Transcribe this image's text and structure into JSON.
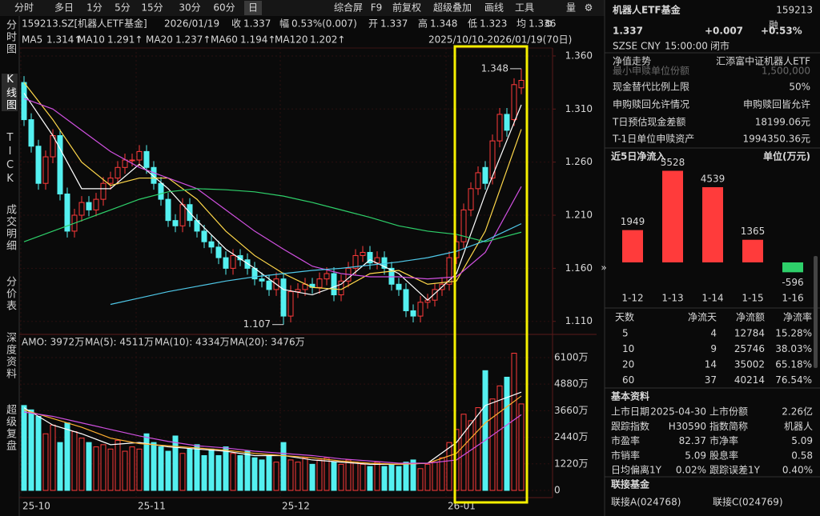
{
  "toolbar": {
    "tabs": [
      "分时",
      "多日",
      "1分",
      "5分",
      "15分",
      "30分",
      "60分",
      "日"
    ],
    "menu": [
      "综合屏",
      "F9",
      "前复权",
      "超级叠加",
      "画线",
      "工具",
      "量"
    ],
    "symbol": "159213.SZ[机器人ETF基金]",
    "date": "2026/01/19",
    "quote": [
      {
        "label": "收",
        "value": "1.337",
        "color": "#ff3b3b"
      },
      {
        "label": "幅",
        "value": "0.53%(0.007)",
        "color": "#ff3b3b"
      },
      {
        "label": "开",
        "value": "1.337",
        "color": "#ff3b3b"
      },
      {
        "label": "高",
        "value": "1.348",
        "color": "#ff3b3b"
      },
      {
        "label": "低",
        "value": "1.323",
        "color": "#2ed06a"
      },
      {
        "label": "均",
        "value": "1.336",
        "color": "#ff3b3b"
      }
    ],
    "ma_legend": [
      {
        "label": "MA5",
        "value": "1.314↑",
        "color": "#ffffff"
      },
      {
        "label": "MA10",
        "value": "1.291↑",
        "color": "#ffd84a"
      },
      {
        "label": "MA20",
        "value": "1.237↑",
        "color": "#d050e0"
      },
      {
        "label": "MA60",
        "value": "1.194↑",
        "color": "#2ed06a"
      },
      {
        "label": "MA120",
        "value": "1.202↑",
        "color": "#4fc8e8"
      }
    ],
    "range": "2025/10/10-2026/01/19(70日)"
  },
  "side_tabs": [
    "分时图",
    "K线图",
    "TICK",
    "成交明细",
    "分价表",
    "深度资料",
    "超级复盘"
  ],
  "chart_data": {
    "type": "candlestick",
    "categories": [
      "25-10",
      null,
      null,
      null,
      null,
      null,
      null,
      null,
      null,
      null,
      null,
      null,
      null,
      null,
      null,
      null,
      "25-11",
      null,
      null,
      null,
      null,
      null,
      null,
      null,
      null,
      null,
      null,
      null,
      null,
      null,
      null,
      null,
      null,
      null,
      null,
      null,
      "25-12",
      null,
      null,
      null,
      null,
      null,
      null,
      null,
      null,
      null,
      null,
      null,
      null,
      null,
      null,
      null,
      null,
      null,
      null,
      null,
      null,
      null,
      null,
      "26-01",
      null,
      null,
      null,
      null,
      null,
      null,
      null,
      null,
      null,
      null
    ],
    "open": [
      1.335,
      1.3,
      1.275,
      1.24,
      1.265,
      1.285,
      1.23,
      1.195,
      1.21,
      1.222,
      1.215,
      1.225,
      1.24,
      1.245,
      1.255,
      1.262,
      1.262,
      1.27,
      1.255,
      1.24,
      1.225,
      1.205,
      1.2,
      1.22,
      1.205,
      1.195,
      1.185,
      1.18,
      1.17,
      1.16,
      1.172,
      1.168,
      1.16,
      1.15,
      1.148,
      1.14,
      1.15,
      1.115,
      1.138,
      1.14,
      1.145,
      1.142,
      1.15,
      1.155,
      1.135,
      1.148,
      1.16,
      1.172,
      1.175,
      1.165,
      1.17,
      1.16,
      1.145,
      1.14,
      1.12,
      1.115,
      1.128,
      1.13,
      1.14,
      1.145,
      1.17,
      1.185,
      1.215,
      1.235,
      1.255,
      1.245,
      1.28,
      1.305,
      1.3,
      1.33
    ],
    "high": [
      1.341,
      1.306,
      1.281,
      1.271,
      1.291,
      1.291,
      1.236,
      1.216,
      1.228,
      1.228,
      1.231,
      1.246,
      1.251,
      1.261,
      1.268,
      1.268,
      1.276,
      1.276,
      1.261,
      1.246,
      1.231,
      1.211,
      1.226,
      1.226,
      1.211,
      1.201,
      1.191,
      1.186,
      1.176,
      1.178,
      1.178,
      1.174,
      1.166,
      1.156,
      1.154,
      1.156,
      1.156,
      1.144,
      1.146,
      1.151,
      1.151,
      1.156,
      1.161,
      1.161,
      1.154,
      1.166,
      1.178,
      1.181,
      1.181,
      1.176,
      1.176,
      1.166,
      1.151,
      1.146,
      1.126,
      1.134,
      1.136,
      1.146,
      1.151,
      1.176,
      1.191,
      1.221,
      1.241,
      1.256,
      1.261,
      1.286,
      1.311,
      1.311,
      1.339,
      1.348
    ],
    "low": [
      1.294,
      1.269,
      1.234,
      1.234,
      1.259,
      1.224,
      1.189,
      1.189,
      1.204,
      1.209,
      1.209,
      1.219,
      1.234,
      1.239,
      1.249,
      1.256,
      1.256,
      1.249,
      1.234,
      1.219,
      1.199,
      1.194,
      1.194,
      1.199,
      1.189,
      1.179,
      1.174,
      1.164,
      1.154,
      1.154,
      1.162,
      1.154,
      1.144,
      1.142,
      1.134,
      1.134,
      1.107,
      1.109,
      1.132,
      1.134,
      1.136,
      1.136,
      1.144,
      1.129,
      1.129,
      1.142,
      1.154,
      1.166,
      1.159,
      1.159,
      1.154,
      1.139,
      1.134,
      1.114,
      1.109,
      1.109,
      1.122,
      1.124,
      1.134,
      1.139,
      1.164,
      1.179,
      1.209,
      1.229,
      1.234,
      1.239,
      1.274,
      1.284,
      1.294,
      1.324
    ],
    "close": [
      1.3,
      1.275,
      1.24,
      1.265,
      1.285,
      1.23,
      1.195,
      1.21,
      1.222,
      1.215,
      1.225,
      1.24,
      1.245,
      1.255,
      1.262,
      1.262,
      1.27,
      1.255,
      1.24,
      1.225,
      1.205,
      1.2,
      1.22,
      1.205,
      1.195,
      1.185,
      1.18,
      1.17,
      1.16,
      1.172,
      1.168,
      1.16,
      1.15,
      1.148,
      1.14,
      1.15,
      1.115,
      1.138,
      1.14,
      1.145,
      1.142,
      1.15,
      1.155,
      1.135,
      1.148,
      1.16,
      1.172,
      1.175,
      1.165,
      1.17,
      1.16,
      1.145,
      1.14,
      1.12,
      1.115,
      1.128,
      1.13,
      1.14,
      1.145,
      1.17,
      1.185,
      1.215,
      1.235,
      1.25,
      1.24,
      1.28,
      1.305,
      1.29,
      1.333,
      1.337
    ],
    "up_color": "#ff3b3b",
    "down_color": "#54f0f0",
    "ylim": [
      1.1,
      1.3675
    ],
    "yticks": [
      {
        "value": 1.36,
        "label": "1.360"
      },
      {
        "value": 1.31,
        "label": "1.310"
      },
      {
        "value": 1.26,
        "label": "1.260"
      },
      {
        "value": 1.21,
        "label": "1.210"
      },
      {
        "value": 1.16,
        "label": "1.160"
      },
      {
        "value": 1.11,
        "label": "1.110"
      }
    ],
    "max_label": {
      "value": 1.348,
      "label": "1.348"
    },
    "min_label": {
      "value": 1.107,
      "label": "1.107"
    },
    "series": [
      {
        "name": "MA5",
        "color": "#ffffff",
        "x": [
          0,
          4,
          8,
          12,
          16,
          20,
          24,
          28,
          32,
          36,
          40,
          44,
          48,
          52,
          56,
          60,
          64,
          69
        ],
        "values": [
          1.325,
          1.285,
          1.235,
          1.235,
          1.258,
          1.235,
          1.205,
          1.178,
          1.16,
          1.14,
          1.135,
          1.145,
          1.168,
          1.155,
          1.13,
          1.155,
          1.23,
          1.314
        ]
      },
      {
        "name": "MA10",
        "color": "#ffd84a",
        "x": [
          0,
          4,
          8,
          12,
          16,
          20,
          24,
          28,
          32,
          36,
          40,
          44,
          48,
          52,
          56,
          60,
          64,
          69
        ],
        "values": [
          1.335,
          1.3,
          1.26,
          1.238,
          1.245,
          1.245,
          1.225,
          1.195,
          1.172,
          1.155,
          1.142,
          1.14,
          1.155,
          1.158,
          1.145,
          1.148,
          1.195,
          1.291
        ]
      },
      {
        "name": "MA20",
        "color": "#d050e0",
        "x": [
          0,
          4,
          8,
          12,
          16,
          20,
          24,
          28,
          32,
          36,
          40,
          44,
          48,
          52,
          56,
          60,
          64,
          69
        ],
        "values": [
          1.32,
          1.31,
          1.29,
          1.27,
          1.255,
          1.245,
          1.235,
          1.215,
          1.195,
          1.178,
          1.162,
          1.155,
          1.152,
          1.152,
          1.15,
          1.152,
          1.175,
          1.237
        ]
      },
      {
        "name": "MA60",
        "color": "#2ed06a",
        "x": [
          0,
          4,
          8,
          12,
          16,
          20,
          24,
          28,
          32,
          36,
          40,
          44,
          48,
          52,
          56,
          60,
          64,
          69
        ],
        "values": [
          1.185,
          1.195,
          1.205,
          1.215,
          1.225,
          1.232,
          1.235,
          1.234,
          1.232,
          1.228,
          1.222,
          1.215,
          1.208,
          1.2,
          1.195,
          1.192,
          1.185,
          1.194
        ]
      },
      {
        "name": "MA120",
        "color": "#4fc8e8",
        "x": [
          12,
          16,
          20,
          24,
          28,
          32,
          36,
          40,
          44,
          48,
          52,
          56,
          60,
          64,
          69
        ],
        "values": [
          1.126,
          1.132,
          1.138,
          1.143,
          1.148,
          1.152,
          1.155,
          1.158,
          1.16,
          1.163,
          1.166,
          1.17,
          1.176,
          1.186,
          1.202
        ]
      }
    ]
  },
  "volume_chart": {
    "type": "bar",
    "legend": [
      {
        "text": "AMO: 3972万",
        "color": "#ffffff"
      },
      {
        "text": "MA(5): 4511万",
        "color": "#ffffff"
      },
      {
        "text": "MA(10): 4334万",
        "color": "#ffb030"
      },
      {
        "text": "MA(20): 3476万",
        "color": "#d050e0"
      }
    ],
    "values": [
      3900,
      3700,
      3400,
      2600,
      3000,
      2200,
      3100,
      2700,
      2400,
      2200,
      2000,
      2100,
      1900,
      2300,
      1800,
      2000,
      1900,
      2600,
      2200,
      2000,
      1800,
      2500,
      1700,
      1900,
      2100,
      1600,
      1900,
      1600,
      2000,
      1700,
      1600,
      1800,
      1500,
      1400,
      1600,
      1300,
      2200,
      1400,
      1300,
      1500,
      1200,
      1400,
      1500,
      1300,
      1200,
      1400,
      1300,
      1200,
      1100,
      1300,
      1100,
      1200,
      1100,
      1300,
      1400,
      1000,
      1200,
      1300,
      1500,
      2200,
      2800,
      3500,
      3200,
      3800,
      5500,
      4200,
      4800,
      5200,
      6300,
      3972
    ],
    "ylim": [
      -330,
      6540
    ],
    "yticks": [
      {
        "value": 6100,
        "label": "6100万"
      },
      {
        "value": 4880,
        "label": "4880万"
      },
      {
        "value": 3660,
        "label": "3660万"
      },
      {
        "value": 2440,
        "label": "2440万"
      },
      {
        "value": 1220,
        "label": "1220万"
      },
      0
    ],
    "series": [
      {
        "name": "MA(5)",
        "color": "#ffffff",
        "x": [
          0,
          4,
          8,
          12,
          16,
          20,
          24,
          28,
          32,
          36,
          40,
          44,
          48,
          52,
          56,
          60,
          64,
          69
        ],
        "values": [
          3800,
          3000,
          2600,
          2100,
          2200,
          2000,
          1900,
          1800,
          1600,
          1600,
          1400,
          1300,
          1200,
          1200,
          1250,
          2200,
          3900,
          4511
        ]
      },
      {
        "name": "MA(10)",
        "color": "#ffb030",
        "x": [
          0,
          4,
          8,
          12,
          16,
          20,
          24,
          28,
          32,
          36,
          40,
          44,
          48,
          52,
          56,
          60,
          64,
          69
        ],
        "values": [
          3700,
          3300,
          2900,
          2400,
          2150,
          2050,
          1950,
          1850,
          1700,
          1600,
          1500,
          1350,
          1250,
          1200,
          1250,
          1700,
          3100,
          4334
        ]
      },
      {
        "name": "MA(20)",
        "color": "#d050e0",
        "x": [
          0,
          4,
          8,
          12,
          16,
          20,
          24,
          28,
          32,
          36,
          40,
          44,
          48,
          52,
          56,
          60,
          64,
          69
        ],
        "values": [
          3600,
          3400,
          3100,
          2800,
          2500,
          2250,
          2050,
          1950,
          1800,
          1700,
          1600,
          1450,
          1350,
          1250,
          1250,
          1400,
          2300,
          3476
        ]
      }
    ]
  },
  "panel": {
    "title": "机器人ETF基金",
    "code": "159213",
    "price": "1.337",
    "change": "+0.007",
    "change_pct": "+0.53%",
    "meta": [
      "SZSE",
      "CNY",
      "15:00:00",
      "闭市"
    ],
    "badge": "融",
    "rows": [
      {
        "label": "净值走势",
        "value": "汇添富中证机器人ETF"
      },
      {
        "label": "最小申赎单位份额",
        "value": "1,500,000"
      },
      {
        "label": "现金替代比例上限",
        "value": "50%"
      },
      {
        "label": "申购赎回允许情况",
        "value": "申购赎回皆允许"
      },
      {
        "label": "T日预估现金差额",
        "value": "18199.06元"
      },
      {
        "label": "T-1日单位申赎资产",
        "value": "1994350.36元"
      }
    ],
    "flow_title": "近5日净流入",
    "flow_unit": "单位(万元)",
    "flow_chart": {
      "type": "bar",
      "categories": [
        "1-12",
        "1-13",
        "1-14",
        "1-15",
        "1-16"
      ],
      "values": [
        1949,
        5528,
        4539,
        1365,
        -596
      ],
      "up_color": "#ff3b3b",
      "down_color": "#2ed06a",
      "ylim": [
        -700,
        5600
      ]
    },
    "flow_table": {
      "header": [
        "天数",
        "净流天",
        "净流额",
        "净流率"
      ],
      "rows": [
        [
          5,
          4,
          12784,
          "15.28%"
        ],
        [
          10,
          9,
          25746,
          "38.03%"
        ],
        [
          20,
          14,
          35002,
          "65.18%"
        ],
        [
          60,
          37,
          40214,
          "76.54%"
        ]
      ]
    },
    "basic_title": "基本资料",
    "basic": [
      [
        "上市日期",
        "2025-04-30",
        "上市份额",
        "2.26亿"
      ],
      [
        "跟踪指数",
        "H30590",
        "指数简称",
        "机器人"
      ],
      [
        "市盈率",
        "82.37",
        "市净率",
        "5.09"
      ],
      [
        "市销率",
        "5.09",
        "股息率",
        "0.58"
      ],
      [
        "日均偏离1Y",
        "0.02%",
        "跟踪误差1Y",
        "0.40%"
      ]
    ],
    "link_title": "联接基金",
    "links": [
      "联接A(024768)",
      "联接C(024769)"
    ]
  }
}
